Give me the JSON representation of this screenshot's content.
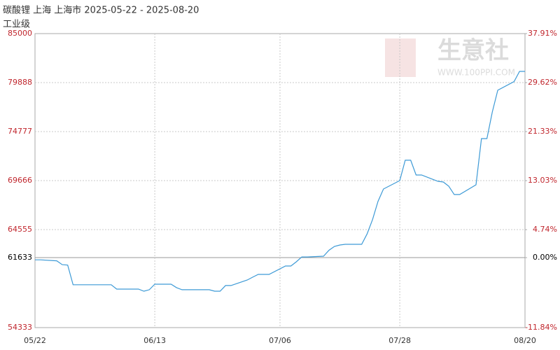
{
  "chart_data": {
    "type": "line",
    "title": "碳酸锂 上海 上海市 2025-05-22 - 2025-08-20",
    "subtitle": "工业级",
    "watermark": "生意社",
    "watermark_url": "WWW.100PPI.COM",
    "x": [
      "05/22",
      "05/23",
      "05/26",
      "05/27",
      "05/28",
      "05/29",
      "05/30",
      "06/03",
      "06/04",
      "06/05",
      "06/06",
      "06/09",
      "06/10",
      "06/11",
      "06/12",
      "06/13",
      "06/16",
      "06/17",
      "06/18",
      "06/19",
      "06/20",
      "06/23",
      "06/24",
      "06/25",
      "06/26",
      "06/27",
      "06/30",
      "07/01",
      "07/02",
      "07/03",
      "07/04",
      "07/07",
      "07/08",
      "07/09",
      "07/10",
      "07/11",
      "07/14",
      "07/15",
      "07/16",
      "07/17",
      "07/18",
      "07/21",
      "07/22",
      "07/23",
      "07/24",
      "07/25",
      "07/28",
      "07/29",
      "07/30",
      "07/31",
      "08/01",
      "08/04",
      "08/05",
      "08/06",
      "08/07",
      "08/08",
      "08/11",
      "08/12",
      "08/13",
      "08/14",
      "08/15",
      "08/18",
      "08/19",
      "08/20"
    ],
    "series": [
      {
        "name": "碳酸锂",
        "color": "#3d9ad6",
        "values": [
          61400,
          61400,
          61300,
          60900,
          60850,
          58800,
          58800,
          58800,
          58800,
          58800,
          58350,
          58350,
          58350,
          58130,
          58280,
          58860,
          58860,
          58500,
          58280,
          58280,
          58280,
          58280,
          58130,
          58130,
          58720,
          58720,
          59300,
          59600,
          59880,
          59880,
          59880,
          60760,
          60760,
          61200,
          61700,
          61700,
          61780,
          62400,
          62800,
          62950,
          63020,
          63020,
          64100,
          65600,
          67500,
          68790,
          69670,
          71790,
          71790,
          70250,
          70250,
          69590,
          69520,
          69080,
          68210,
          68210,
          69230,
          74050,
          74050,
          76820,
          79090,
          80000,
          81060,
          81060
        ]
      }
    ],
    "xlim": [
      "05/22",
      "08/20"
    ],
    "xticks": [
      "05/22",
      "06/13",
      "07/06",
      "07/28",
      "08/20"
    ],
    "ylim": [
      54333,
      85000
    ],
    "yticks": [
      85000,
      79888,
      74777,
      69666,
      64555,
      61633,
      54333
    ],
    "y2lim": [
      -11.84,
      37.91
    ],
    "y2ticks": [
      {
        "value": 37.91,
        "label": "37.91%"
      },
      {
        "value": 29.62,
        "label": "29.62%"
      },
      {
        "value": 21.33,
        "label": "21.33%"
      },
      {
        "value": 13.03,
        "label": "13.03%"
      },
      {
        "value": 4.74,
        "label": "4.74%"
      },
      {
        "value": 0,
        "label": "0.00%"
      },
      {
        "value": -11.84,
        "label": "-11.84%"
      }
    ],
    "grid": true
  }
}
